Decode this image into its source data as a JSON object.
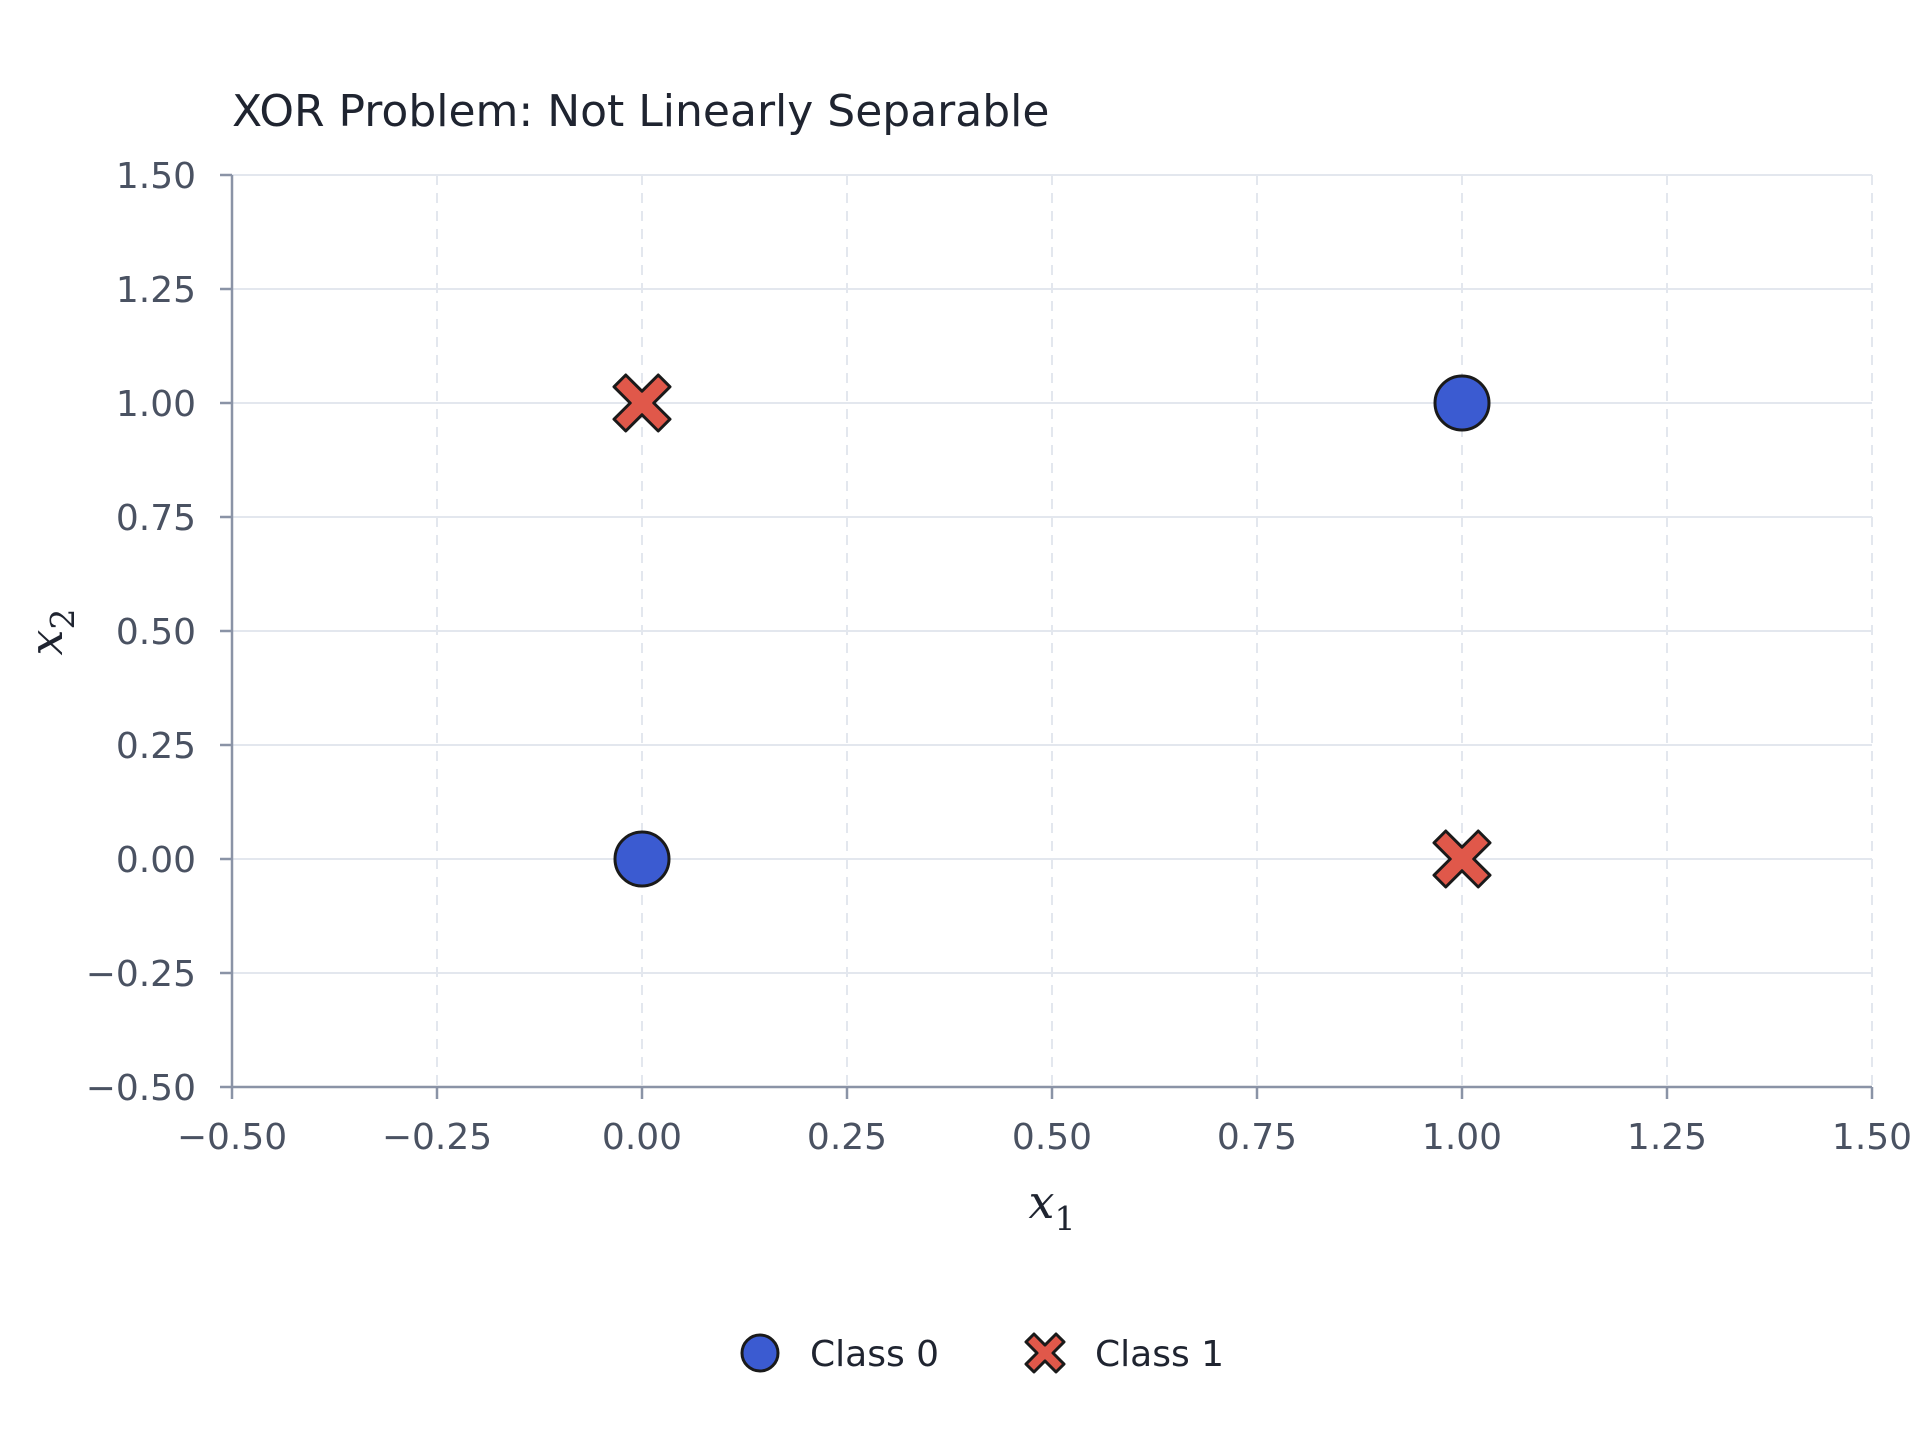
{
  "chart_data": {
    "type": "scatter",
    "title": "XOR Problem: Not Linearly Separable",
    "xlabel": "x1",
    "ylabel": "x2",
    "xlim": [
      -0.5,
      1.5
    ],
    "ylim": [
      -0.5,
      1.5
    ],
    "xticks": [
      "−0.50",
      "−0.25",
      "0.00",
      "0.25",
      "0.50",
      "0.75",
      "1.00",
      "1.25",
      "1.50"
    ],
    "yticks": [
      "−0.50",
      "−0.25",
      "0.00",
      "0.25",
      "0.50",
      "0.75",
      "1.00",
      "1.25",
      "1.50"
    ],
    "grid": true,
    "legend_position": "bottom-center",
    "series": [
      {
        "name": "Class 0",
        "marker": "circle",
        "color": "#3b5bd1",
        "points": [
          [
            0,
            0
          ],
          [
            1,
            1
          ]
        ]
      },
      {
        "name": "Class 1",
        "marker": "x",
        "color": "#e0584a",
        "points": [
          [
            0,
            1
          ],
          [
            1,
            0
          ]
        ]
      }
    ]
  },
  "colors": {
    "axis": "#8a93a6",
    "grid": "#e3e7ee",
    "marker_edge": "#1a1a1a"
  }
}
